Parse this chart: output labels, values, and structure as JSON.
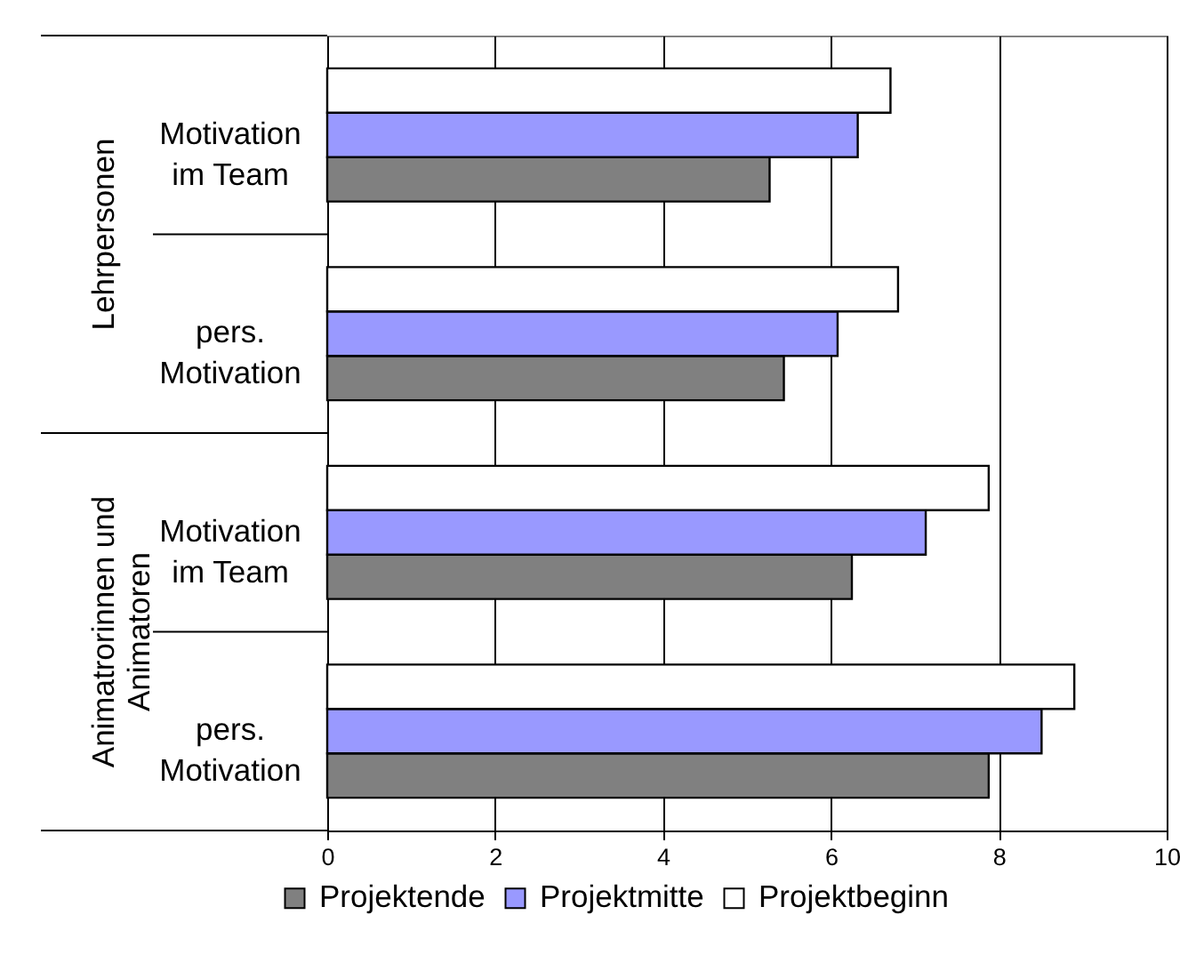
{
  "chart_data": {
    "type": "bar",
    "orientation": "horizontal",
    "categories": [
      "Motivation im Team",
      "pers. Motivation",
      "Motivation im Team",
      "pers. Motivation"
    ],
    "series": [
      {
        "name": "Projektende",
        "color": "#808080",
        "values": [
          5.27,
          5.44,
          6.25,
          7.88
        ]
      },
      {
        "name": "Projektmitte",
        "color": "#9999ff",
        "values": [
          6.32,
          6.08,
          7.13,
          8.51
        ]
      },
      {
        "name": "Projektbeginn",
        "color": "#ffffff",
        "values": [
          6.71,
          6.8,
          7.88,
          8.9
        ]
      }
    ],
    "xlim": [
      0,
      10
    ],
    "xticks": [
      0,
      2,
      4,
      6,
      8,
      10
    ],
    "grid": "x",
    "legend": "bottom",
    "annotations": [
      "Lehrpersonen",
      "Animatrorinnen und Animatoren"
    ]
  }
}
